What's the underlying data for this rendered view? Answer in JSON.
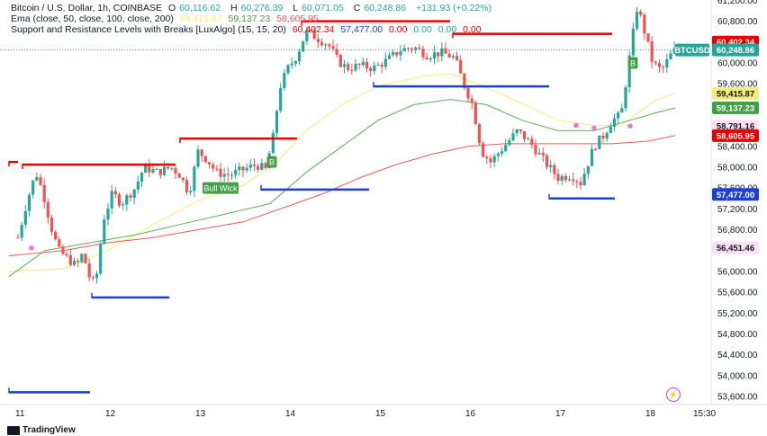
{
  "header": {
    "line1": {
      "symbol": "Bitcoin / U.S. Dollar, 1h, COINBASE",
      "o_label": "O",
      "o": "60,116.62",
      "h_label": "H",
      "h": "60,276.39",
      "l_label": "L",
      "l": "60,071.05",
      "c_label": "C",
      "c": "60,248.86",
      "change": "+131.93 (+0.22%)"
    },
    "line2": {
      "name": "Ema (close, 50, close, 100, close, 200)",
      "v1": "59,415.87",
      "v2": "59,137.23",
      "v3": "58,605.95"
    },
    "line3": {
      "name": "Support and Resistance Levels with Breaks [LuxAlgo] (15, 15, 20)",
      "v1": "60,402.34",
      "v2": "57,477.00",
      "v3": "0.00",
      "v4": "0.00",
      "v5": "0.00",
      "v6": "0.00"
    }
  },
  "colors": {
    "up": "#26a69a",
    "down": "#ef5350",
    "ema50": "#f5ec7a",
    "ema100": "#5aac5d",
    "ema200": "#e85a5a",
    "resistance": "#e60000",
    "support": "#1f3fcf",
    "label_green": "#43a047"
  },
  "watermark": "TradingView",
  "chart_data": {
    "type": "candlestick",
    "symbol": "BTCUSD",
    "timeframe": "1h",
    "ylim": [
      53400,
      61400
    ],
    "y_ticks": [
      53600,
      54000,
      54400,
      54800,
      55200,
      55600,
      56000,
      56400,
      56800,
      57200,
      57600,
      58000,
      58400,
      58800,
      59200,
      59600,
      60000,
      60400,
      60800,
      61200
    ],
    "y_tick_labels": [
      "53,600.00",
      "54,000.00",
      "54,400.00",
      "54,800.00",
      "55,200.00",
      "55,600.00",
      "56,000.00",
      "56,400.00",
      "56,800.00",
      "57,200.00",
      "57,600.00",
      "58,000.00",
      "58,400.00",
      "58,800.00",
      "59,200.00",
      "59,600.00",
      "60,000.00",
      "60,400.00",
      "60,800.00",
      "61,200.00"
    ],
    "x_ticks": [
      {
        "label": "11",
        "day": 0
      },
      {
        "label": "12",
        "day": 1
      },
      {
        "label": "13",
        "day": 2
      },
      {
        "label": "14",
        "day": 3
      },
      {
        "label": "15",
        "day": 4
      },
      {
        "label": "16",
        "day": 5
      },
      {
        "label": "17",
        "day": 6
      },
      {
        "label": "18",
        "day": 7
      },
      {
        "label": "15:30",
        "day": 7.58
      }
    ],
    "x_day_range": [
      -0.1,
      7.7
    ],
    "price_path": [
      [
        0.0,
        56650
      ],
      [
        0.1,
        57350
      ],
      [
        0.2,
        57900
      ],
      [
        0.28,
        57500
      ],
      [
        0.36,
        56900
      ],
      [
        0.45,
        56400
      ],
      [
        0.55,
        56250
      ],
      [
        0.65,
        56100
      ],
      [
        0.72,
        56350
      ],
      [
        0.8,
        55850
      ],
      [
        0.86,
        55750
      ],
      [
        0.95,
        57000
      ],
      [
        1.05,
        57500
      ],
      [
        1.15,
        57300
      ],
      [
        1.3,
        57600
      ],
      [
        1.4,
        58000
      ],
      [
        1.55,
        57900
      ],
      [
        1.7,
        58000
      ],
      [
        1.8,
        57850
      ],
      [
        1.9,
        57500
      ],
      [
        2.0,
        58300
      ],
      [
        2.1,
        58150
      ],
      [
        2.2,
        57900
      ],
      [
        2.35,
        57850
      ],
      [
        2.5,
        57950
      ],
      [
        2.65,
        58050
      ],
      [
        2.75,
        57950
      ],
      [
        2.85,
        58700
      ],
      [
        2.9,
        59500
      ],
      [
        3.0,
        59900
      ],
      [
        3.1,
        60150
      ],
      [
        3.2,
        60600
      ],
      [
        3.3,
        60500
      ],
      [
        3.45,
        60350
      ],
      [
        3.55,
        60050
      ],
      [
        3.65,
        59900
      ],
      [
        3.8,
        59950
      ],
      [
        3.95,
        59900
      ],
      [
        4.1,
        60050
      ],
      [
        4.25,
        60250
      ],
      [
        4.4,
        60300
      ],
      [
        4.55,
        60150
      ],
      [
        4.7,
        60200
      ],
      [
        4.85,
        60100
      ],
      [
        4.95,
        59600
      ],
      [
        5.05,
        59200
      ],
      [
        5.15,
        58300
      ],
      [
        5.25,
        58100
      ],
      [
        5.4,
        58400
      ],
      [
        5.55,
        58700
      ],
      [
        5.7,
        58450
      ],
      [
        5.85,
        58100
      ],
      [
        6.0,
        57800
      ],
      [
        6.15,
        57850
      ],
      [
        6.25,
        57700
      ],
      [
        6.4,
        58400
      ],
      [
        6.5,
        58600
      ],
      [
        6.6,
        58900
      ],
      [
        6.7,
        59000
      ],
      [
        6.8,
        60200
      ],
      [
        6.88,
        61100
      ],
      [
        6.96,
        60600
      ],
      [
        7.05,
        60000
      ],
      [
        7.15,
        59850
      ],
      [
        7.25,
        60150
      ],
      [
        7.3,
        60249
      ]
    ],
    "series": [
      {
        "name": "EMA 50",
        "points": [
          [
            -0.1,
            56000
          ],
          [
            0.5,
            56050
          ],
          [
            1.0,
            56400
          ],
          [
            1.5,
            56900
          ],
          [
            2.0,
            57350
          ],
          [
            2.5,
            57650
          ],
          [
            2.85,
            58050
          ],
          [
            3.2,
            58700
          ],
          [
            3.6,
            59200
          ],
          [
            4.0,
            59550
          ],
          [
            4.5,
            59750
          ],
          [
            4.8,
            59800
          ],
          [
            5.1,
            59600
          ],
          [
            5.5,
            59300
          ],
          [
            6.0,
            58900
          ],
          [
            6.4,
            58800
          ],
          [
            6.7,
            58800
          ],
          [
            6.85,
            59000
          ],
          [
            7.1,
            59300
          ],
          [
            7.3,
            59416
          ]
        ]
      },
      {
        "name": "EMA 100",
        "points": [
          [
            -0.1,
            55900
          ],
          [
            0.3,
            56400
          ],
          [
            0.8,
            56550
          ],
          [
            1.3,
            56700
          ],
          [
            1.8,
            56900
          ],
          [
            2.3,
            57100
          ],
          [
            2.8,
            57300
          ],
          [
            3.2,
            57900
          ],
          [
            3.6,
            58400
          ],
          [
            4.0,
            58900
          ],
          [
            4.4,
            59200
          ],
          [
            4.8,
            59300
          ],
          [
            5.2,
            59200
          ],
          [
            5.6,
            58900
          ],
          [
            6.0,
            58700
          ],
          [
            6.4,
            58700
          ],
          [
            6.8,
            58900
          ],
          [
            7.1,
            59050
          ],
          [
            7.3,
            59137
          ]
        ]
      },
      {
        "name": "EMA 200",
        "points": [
          [
            -0.1,
            56300
          ],
          [
            0.5,
            56400
          ],
          [
            1.0,
            56550
          ],
          [
            1.5,
            56650
          ],
          [
            2.0,
            56800
          ],
          [
            2.5,
            56950
          ],
          [
            3.0,
            57250
          ],
          [
            3.4,
            57500
          ],
          [
            3.8,
            57800
          ],
          [
            4.2,
            58050
          ],
          [
            4.6,
            58250
          ],
          [
            5.0,
            58400
          ],
          [
            5.4,
            58450
          ],
          [
            5.8,
            58450
          ],
          [
            6.2,
            58450
          ],
          [
            6.6,
            58450
          ],
          [
            7.0,
            58500
          ],
          [
            7.3,
            58606
          ]
        ]
      }
    ],
    "resistance_levels": [
      {
        "from": -0.1,
        "to": 0.0,
        "y": 58100
      },
      {
        "from": 0.05,
        "to": 1.75,
        "y": 58050
      },
      {
        "from": 1.8,
        "to": 3.1,
        "y": 58550
      },
      {
        "from": 3.15,
        "to": 4.8,
        "y": 60800
      },
      {
        "from": 4.83,
        "to": 6.6,
        "y": 60560
      }
    ],
    "support_levels": [
      {
        "from": -0.1,
        "to": 0.8,
        "y": 53680
      },
      {
        "from": 0.82,
        "to": 1.68,
        "y": 55500
      },
      {
        "from": 2.7,
        "to": 3.9,
        "y": 57570
      },
      {
        "from": 3.95,
        "to": 5.9,
        "y": 59550
      },
      {
        "from": 5.9,
        "to": 6.63,
        "y": 57400
      }
    ],
    "labels": [
      {
        "text": "Bull Wick",
        "day": 2.25,
        "y": 57600
      },
      {
        "text": "B",
        "day": 2.82,
        "y": 58100
      },
      {
        "text": "B",
        "day": 6.83,
        "y": 60000
      }
    ],
    "markers": [
      {
        "day": 0.15,
        "y": 56450
      },
      {
        "day": 6.2,
        "y": 58800
      },
      {
        "day": 6.4,
        "y": 58750
      },
      {
        "day": 6.8,
        "y": 58790
      }
    ],
    "price_badges": [
      {
        "text": "60,402.34",
        "value": 60402.34,
        "color": "#e60000"
      },
      {
        "text": "BTCUSD",
        "value": 60248.86,
        "color": "#26a69a",
        "prefix": true
      },
      {
        "text": "60,248.86",
        "value": 60248.86,
        "color": "#26a69a"
      },
      {
        "text": "59,415.87",
        "value": 59415.87,
        "color": "#f5ec7a",
        "dark": true
      },
      {
        "text": "59,137.23",
        "value": 59137.23,
        "color": "#43a047"
      },
      {
        "text": "58,791.16",
        "value": 58791.16,
        "color": "#f8d7f5",
        "dark": true,
        "pink": true
      },
      {
        "text": "58,605.95",
        "value": 58605.95,
        "color": "#e60000"
      },
      {
        "text": "57,477.00",
        "value": 57477.0,
        "color": "#1f3fcf"
      },
      {
        "text": "56,451.46",
        "value": 56451.46,
        "color": "#f8d7f5",
        "dark": true,
        "pink": true
      }
    ]
  }
}
